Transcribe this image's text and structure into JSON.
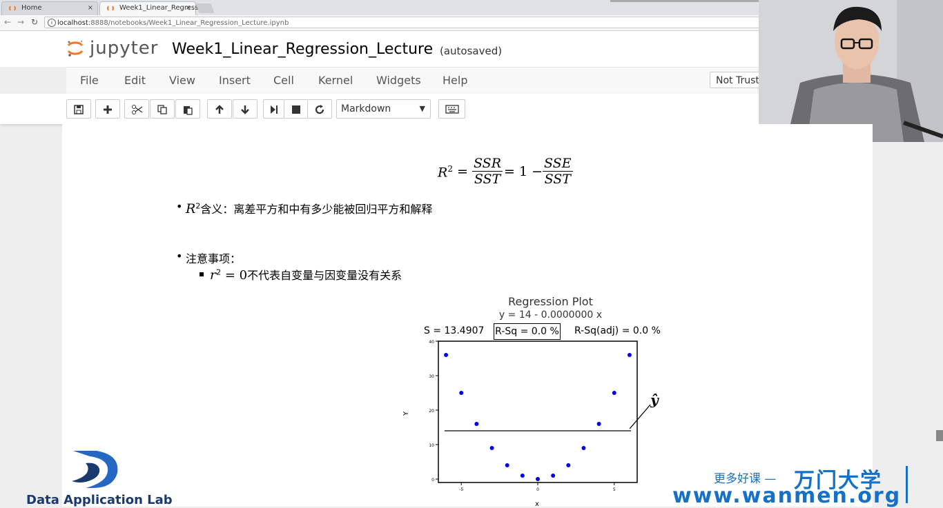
{
  "browser": {
    "tabs": [
      {
        "label": "Home",
        "close": "×"
      },
      {
        "label": "Week1_Linear_Regress",
        "close": "×"
      }
    ],
    "url_host": "localhost",
    "url_path": ":8888/notebooks/Week1_Linear_Regression_Lecture.ipynb"
  },
  "jupyter": {
    "logo_text": "jupyter",
    "notebook_title": "Week1_Linear_Regression_Lecture",
    "save_status": "(autosaved)",
    "menu": [
      "File",
      "Edit",
      "View",
      "Insert",
      "Cell",
      "Kernel",
      "Widgets",
      "Help"
    ],
    "trust_label": "Not Truste",
    "cell_type": "Markdown",
    "toolbar_icons": [
      "save-icon",
      "plus-icon",
      "cut-icon",
      "copy-icon",
      "paste-icon",
      "arrow-up-icon",
      "arrow-down-icon",
      "run-icon",
      "stop-icon",
      "restart-icon",
      "keyboard-icon"
    ]
  },
  "content": {
    "formula_lhs": "R",
    "formula_lhs_exp": "2",
    "formula_eq": "=",
    "formula_frac1_num": "SSR",
    "formula_frac1_den": "SST",
    "formula_rhs": "= 1 −",
    "formula_frac2_num": "SSE",
    "formula_frac2_den": "SST",
    "bullet1_math": "R",
    "bullet1_exp": "2",
    "bullet1_text": "含义：离差平方和中有多少能被回归平方和解释",
    "bullet2_text": "注意事项：",
    "sub1_math": "r",
    "sub1_exp": "2",
    "sub1_eq": " = 0",
    "sub1_text": "不代表自变量与因变量没有关系"
  },
  "chart_data": {
    "type": "scatter",
    "title": "Regression Plot",
    "subtitle": "y = 14 - 0.0000000 x",
    "stats": {
      "s": "S = 13.4907",
      "rsq": "R-Sq = 0.0 %",
      "rsq_adj": "R-Sq(adj) = 0.0 %"
    },
    "xlabel": "x",
    "ylabel": "Y",
    "x": [
      -6,
      -5,
      -4,
      -3,
      -2,
      -1,
      0,
      1,
      2,
      3,
      4,
      5,
      6
    ],
    "y": [
      36,
      25,
      16,
      9,
      4,
      1,
      0,
      1,
      4,
      9,
      16,
      25,
      36
    ],
    "fit_line": {
      "intercept": 14,
      "slope": 0
    },
    "xlim": [
      -6.5,
      6.5
    ],
    "ylim": [
      -1,
      40
    ],
    "xticks": [
      "-5",
      "0",
      "5"
    ],
    "yticks": [
      "0",
      "10",
      "20",
      "30",
      "40"
    ],
    "annotation": "ŷ",
    "point_color": "#0000ee"
  },
  "watermarks": {
    "lab_name": "Data Application Lab",
    "cn_slogan": "更多好课 —",
    "brand_cn": "万门大学",
    "url": "www.wanmen.org"
  }
}
